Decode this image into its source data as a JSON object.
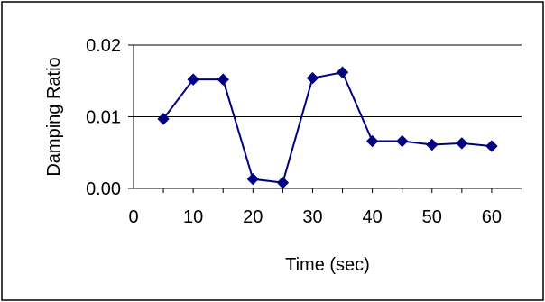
{
  "chart_data": {
    "type": "line",
    "title": "",
    "xlabel": "Time (sec)",
    "ylabel": "Damping Ratio",
    "xlim": [
      0,
      65
    ],
    "ylim": [
      0.0,
      0.02
    ],
    "x_ticks": [
      0,
      10,
      20,
      30,
      40,
      50,
      60
    ],
    "x_tick_labels": [
      "0",
      "10",
      "20",
      "30",
      "40",
      "50",
      "60"
    ],
    "y_ticks": [
      0.0,
      0.01,
      0.02
    ],
    "y_tick_labels": [
      "0.00",
      "0.01",
      "0.02"
    ],
    "grid": "horizontal major gridlines",
    "legend": "none",
    "series": [
      {
        "color": "#000080",
        "marker": "diamond",
        "x": [
          5,
          10,
          15,
          20,
          25,
          30,
          35,
          40,
          45,
          50,
          55,
          60
        ],
        "y": [
          0.0097,
          0.0152,
          0.0152,
          0.0013,
          0.0008,
          0.0154,
          0.0162,
          0.0066,
          0.0066,
          0.0061,
          0.0063,
          0.0059
        ]
      }
    ]
  }
}
